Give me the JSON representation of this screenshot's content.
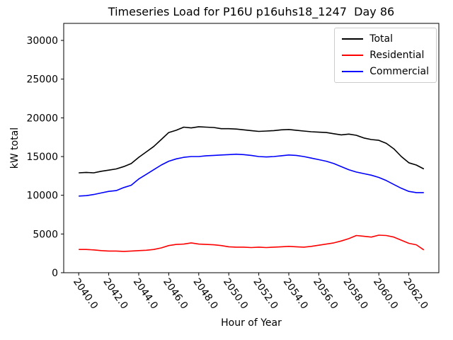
{
  "chart_data": {
    "type": "line",
    "title": "Timeseries Load for P16U p16uhs18_1247  Day 86",
    "xlabel": "Hour of Year",
    "ylabel": "kW total",
    "xlim": [
      2039.0,
      2064.0
    ],
    "ylim": [
      0,
      32200
    ],
    "grid": false,
    "legend_position": "upper right",
    "xticks": [
      2040,
      2042,
      2044,
      2046,
      2048,
      2050,
      2052,
      2054,
      2056,
      2058,
      2060,
      2062
    ],
    "xtick_labels": [
      "2040.0",
      "2042.0",
      "2044.0",
      "2046.0",
      "2048.0",
      "2050.0",
      "2052.0",
      "2054.0",
      "2056.0",
      "2058.0",
      "2060.0",
      "2062.0"
    ],
    "yticks": [
      0,
      5000,
      10000,
      15000,
      20000,
      25000,
      30000
    ],
    "x": [
      2040,
      2040.5,
      2041,
      2041.5,
      2042,
      2042.5,
      2043,
      2043.5,
      2044,
      2044.5,
      2045,
      2045.5,
      2046,
      2046.5,
      2047,
      2047.5,
      2048,
      2048.5,
      2049,
      2049.5,
      2050,
      2050.5,
      2051,
      2051.5,
      2052,
      2052.5,
      2053,
      2053.5,
      2054,
      2054.5,
      2055,
      2055.5,
      2056,
      2056.5,
      2057,
      2057.5,
      2058,
      2058.5,
      2059,
      2059.5,
      2060,
      2060.5,
      2061,
      2061.5,
      2062,
      2062.5,
      2063
    ],
    "series": [
      {
        "name": "Total",
        "color": "#000000",
        "values": [
          12900,
          12950,
          12900,
          13100,
          13250,
          13400,
          13700,
          14100,
          14900,
          15600,
          16300,
          17200,
          18100,
          18400,
          18800,
          18700,
          18850,
          18800,
          18750,
          18600,
          18600,
          18550,
          18450,
          18350,
          18250,
          18300,
          18350,
          18450,
          18500,
          18400,
          18300,
          18200,
          18150,
          18100,
          17950,
          17800,
          17900,
          17750,
          17400,
          17200,
          17100,
          16700,
          16000,
          15000,
          14200,
          13900,
          13400
        ]
      },
      {
        "name": "Residential",
        "color": "#ff0000",
        "values": [
          3000,
          3000,
          2950,
          2850,
          2800,
          2800,
          2750,
          2800,
          2850,
          2900,
          3000,
          3200,
          3500,
          3650,
          3700,
          3850,
          3700,
          3650,
          3600,
          3500,
          3350,
          3300,
          3300,
          3250,
          3300,
          3250,
          3300,
          3350,
          3400,
          3350,
          3300,
          3400,
          3550,
          3700,
          3850,
          4100,
          4400,
          4800,
          4700,
          4600,
          4850,
          4800,
          4600,
          4200,
          3800,
          3600,
          2950
        ]
      },
      {
        "name": "Commercial",
        "color": "#0000ff",
        "values": [
          9900,
          9950,
          10100,
          10300,
          10500,
          10600,
          11000,
          11300,
          12100,
          12700,
          13300,
          13900,
          14400,
          14700,
          14900,
          15000,
          15000,
          15100,
          15150,
          15200,
          15250,
          15300,
          15250,
          15150,
          15000,
          14950,
          15000,
          15100,
          15200,
          15150,
          15000,
          14800,
          14600,
          14400,
          14100,
          13700,
          13300,
          13000,
          12800,
          12600,
          12300,
          11900,
          11400,
          10900,
          10500,
          10350,
          10350
        ]
      }
    ]
  }
}
